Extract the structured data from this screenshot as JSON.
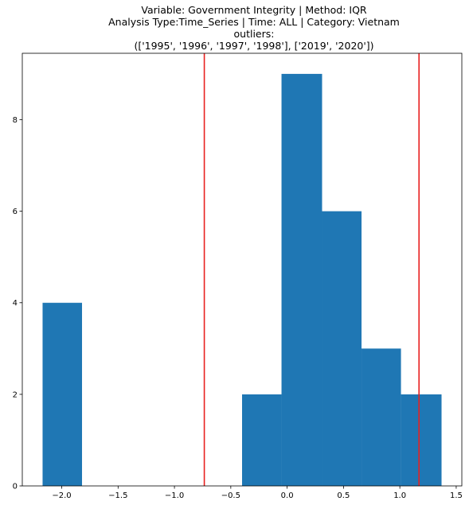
{
  "chart_data": {
    "type": "bar",
    "title_lines": [
      "Variable: Government Integrity | Method: IQR",
      "Analysis Type:Time_Series | Time: ALL | Category: Vietnam",
      "outliers:",
      "(['1995', '1996', '1997', '1998'], ['2019', '2020'])"
    ],
    "xlabel": "",
    "ylabel": "",
    "xlim": [
      -2.35,
      1.55
    ],
    "ylim": [
      0,
      9.45
    ],
    "xticks": [
      -2.0,
      -1.5,
      -1.0,
      -0.5,
      0.0,
      0.5,
      1.0,
      1.5
    ],
    "xtick_labels": [
      "−2.0",
      "−1.5",
      "−1.0",
      "−0.5",
      "0.0",
      "0.5",
      "1.0",
      "1.5"
    ],
    "yticks": [
      0,
      2,
      4,
      6,
      8
    ],
    "ytick_labels": [
      "0",
      "2",
      "4",
      "6",
      "8"
    ],
    "bins": [
      {
        "x0": -2.17,
        "x1": -1.82,
        "count": 4
      },
      {
        "x0": -1.82,
        "x1": -1.46,
        "count": 0
      },
      {
        "x0": -1.46,
        "x1": -1.11,
        "count": 0
      },
      {
        "x0": -1.11,
        "x1": -0.75,
        "count": 0
      },
      {
        "x0": -0.75,
        "x1": -0.4,
        "count": 0
      },
      {
        "x0": -0.4,
        "x1": -0.05,
        "count": 2
      },
      {
        "x0": -0.05,
        "x1": 0.31,
        "count": 9
      },
      {
        "x0": 0.31,
        "x1": 0.66,
        "count": 6
      },
      {
        "x0": 0.66,
        "x1": 1.01,
        "count": 3
      },
      {
        "x0": 1.01,
        "x1": 1.37,
        "count": 2
      }
    ],
    "thresholds": [
      -0.735,
      1.17
    ],
    "colors": {
      "bar": "#1f77b4",
      "threshold": "#e8201f",
      "axis": "#000000"
    },
    "grid": false
  }
}
